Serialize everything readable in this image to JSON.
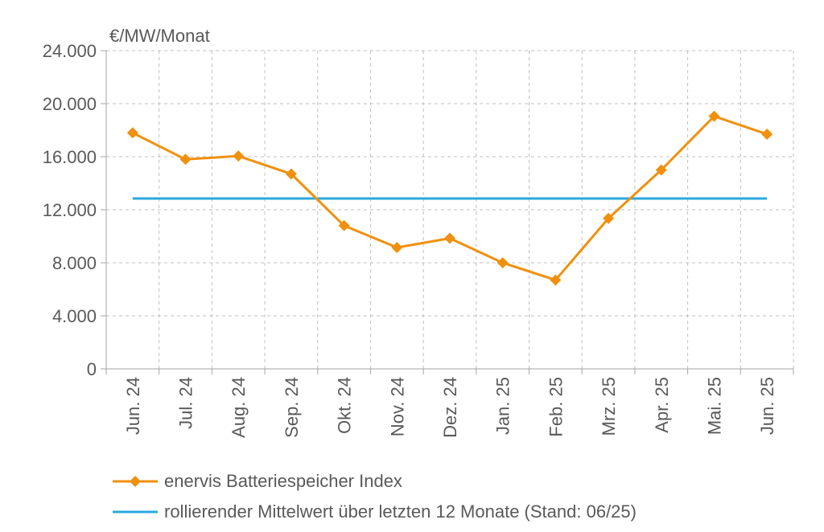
{
  "chart_data": {
    "type": "line",
    "unit_label": "€/MW/Monat",
    "categories": [
      "Jun. 24",
      "Jul. 24",
      "Aug. 24",
      "Sep. 24",
      "Okt. 24",
      "Nov. 24",
      "Dez. 24",
      "Jan. 25",
      "Feb. 25",
      "Mrz. 25",
      "Apr. 25",
      "Mai. 25",
      "Jun. 25"
    ],
    "ylim": [
      0,
      24000
    ],
    "yticks": [
      0,
      4000,
      8000,
      12000,
      16000,
      20000,
      24000
    ],
    "ytick_labels": [
      "0",
      "4.000",
      "8.000",
      "12.000",
      "16.000",
      "20.000",
      "24.000"
    ],
    "grid": true,
    "legend_position": "bottom",
    "series": [
      {
        "name": "enervis Batteriespeicher Index",
        "color": "#f0900e",
        "marker": "diamond",
        "values": [
          17800,
          15800,
          16050,
          14700,
          10800,
          9150,
          9850,
          8000,
          6700,
          11350,
          15000,
          19050,
          17700
        ]
      },
      {
        "name": "rollierender Mittelwert über letzten 12 Monate (Stand: 06/25)",
        "color": "#29a9df",
        "marker": "none",
        "values": [
          12850,
          12850,
          12850,
          12850,
          12850,
          12850,
          12850,
          12850,
          12850,
          12850,
          12850,
          12850,
          12850
        ]
      }
    ]
  }
}
